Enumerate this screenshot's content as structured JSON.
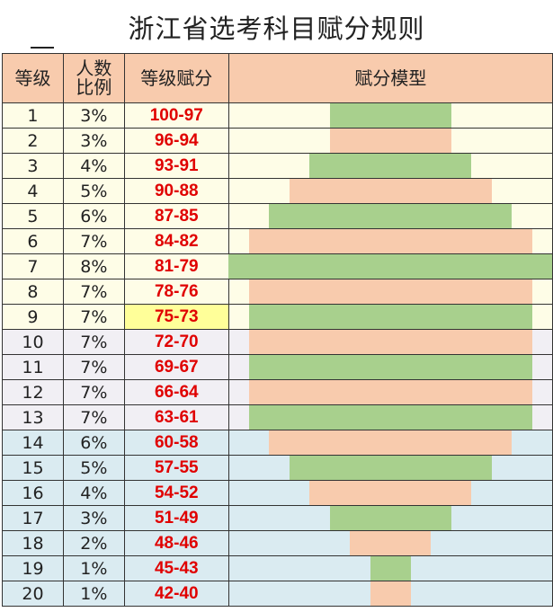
{
  "title": "浙江省选考科目赋分规则",
  "headers": [
    "等级",
    [
      "人数",
      "比例"
    ],
    "等级赋分",
    "赋分模型"
  ],
  "colors": {
    "header": "#f8cbad",
    "band_top": "#fefde7",
    "band_mid": "#f1eff4",
    "band_bottom": "#daebf1",
    "bar_green": "#a8d08d",
    "bar_peach": "#f8cbad",
    "score_red": "#e00000",
    "highlight": "#ffff99"
  },
  "rows": [
    {
      "grade": "1",
      "ratio": "3%",
      "score": "100-97",
      "band": "band_top",
      "bar": "bar_green",
      "percent": 3
    },
    {
      "grade": "2",
      "ratio": "3%",
      "score": "96-94",
      "band": "band_top",
      "bar": "bar_peach",
      "percent": 3
    },
    {
      "grade": "3",
      "ratio": "4%",
      "score": "93-91",
      "band": "band_top",
      "bar": "bar_green",
      "percent": 4
    },
    {
      "grade": "4",
      "ratio": "5%",
      "score": "90-88",
      "band": "band_top",
      "bar": "bar_peach",
      "percent": 5
    },
    {
      "grade": "5",
      "ratio": "6%",
      "score": "87-85",
      "band": "band_top",
      "bar": "bar_green",
      "percent": 6
    },
    {
      "grade": "6",
      "ratio": "7%",
      "score": "84-82",
      "band": "band_top",
      "bar": "bar_peach",
      "percent": 7
    },
    {
      "grade": "7",
      "ratio": "8%",
      "score": "81-79",
      "band": "band_top",
      "bar": "bar_green",
      "percent": 8
    },
    {
      "grade": "8",
      "ratio": "7%",
      "score": "78-76",
      "band": "band_top",
      "bar": "bar_peach",
      "percent": 7
    },
    {
      "grade": "9",
      "ratio": "7%",
      "score": "75-73",
      "band": "band_top",
      "bar": "bar_green",
      "percent": 7,
      "highlight": true
    },
    {
      "grade": "10",
      "ratio": "7%",
      "score": "72-70",
      "band": "band_mid",
      "bar": "bar_peach",
      "percent": 7
    },
    {
      "grade": "11",
      "ratio": "7%",
      "score": "69-67",
      "band": "band_mid",
      "bar": "bar_green",
      "percent": 7
    },
    {
      "grade": "12",
      "ratio": "7%",
      "score": "66-64",
      "band": "band_mid",
      "bar": "bar_peach",
      "percent": 7
    },
    {
      "grade": "13",
      "ratio": "7%",
      "score": "63-61",
      "band": "band_mid",
      "bar": "bar_green",
      "percent": 7
    },
    {
      "grade": "14",
      "ratio": "6%",
      "score": "60-58",
      "band": "band_bottom",
      "bar": "bar_peach",
      "percent": 6
    },
    {
      "grade": "15",
      "ratio": "5%",
      "score": "57-55",
      "band": "band_bottom",
      "bar": "bar_green",
      "percent": 5
    },
    {
      "grade": "16",
      "ratio": "4%",
      "score": "54-52",
      "band": "band_bottom",
      "bar": "bar_peach",
      "percent": 4
    },
    {
      "grade": "17",
      "ratio": "3%",
      "score": "51-49",
      "band": "band_bottom",
      "bar": "bar_green",
      "percent": 3
    },
    {
      "grade": "18",
      "ratio": "2%",
      "score": "48-46",
      "band": "band_bottom",
      "bar": "bar_peach",
      "percent": 2
    },
    {
      "grade": "19",
      "ratio": "1%",
      "score": "45-43",
      "band": "band_bottom",
      "bar": "bar_green",
      "percent": 1
    },
    {
      "grade": "20",
      "ratio": "1%",
      "score": "42-40",
      "band": "band_bottom",
      "bar": "bar_peach",
      "percent": 1
    }
  ]
}
